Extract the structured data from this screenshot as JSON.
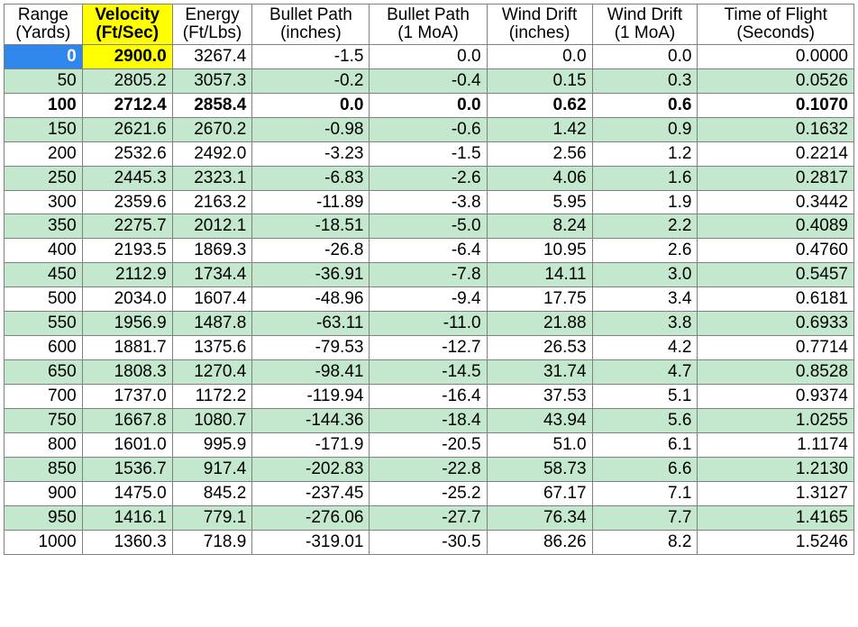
{
  "table": {
    "background_color": "#ffffff",
    "alt_row_color": "#c3e8cd",
    "border_color": "#808080",
    "header_bg": "#ffffff",
    "highlight_header_bg": "#ffff00",
    "first_range_bg": "#2f86eb",
    "first_range_text": "#ffffff",
    "font_family": "Arial",
    "font_size_pt": 14,
    "columns": [
      {
        "key": "range",
        "line1": "Range",
        "line2": "(Yards)",
        "align": "right",
        "highlight": false
      },
      {
        "key": "velocity",
        "line1": "Velocity",
        "line2": "(Ft/Sec)",
        "align": "right",
        "highlight": true
      },
      {
        "key": "energy",
        "line1": "Energy",
        "line2": "(Ft/Lbs)",
        "align": "right",
        "highlight": false
      },
      {
        "key": "path_in",
        "line1": "Bullet Path",
        "line2": "(inches)",
        "align": "right",
        "highlight": false
      },
      {
        "key": "path_moa",
        "line1": "Bullet Path",
        "line2": "(1 MoA)",
        "align": "right",
        "highlight": false
      },
      {
        "key": "drift_in",
        "line1": "Wind Drift",
        "line2": "(inches)",
        "align": "right",
        "highlight": false
      },
      {
        "key": "drift_moa",
        "line1": "Wind Drift",
        "line2": "(1 MoA)",
        "align": "right",
        "highlight": false
      },
      {
        "key": "tof",
        "line1": "Time of Flight",
        "line2": "(Seconds)",
        "align": "right",
        "highlight": false
      }
    ],
    "rows": [
      {
        "range": "0",
        "velocity": "2900.0",
        "energy": "3267.4",
        "path_in": "-1.5",
        "path_moa": "0.0",
        "drift_in": "0.0",
        "drift_moa": "0.0",
        "tof": "0.0000",
        "bold": false,
        "first": true
      },
      {
        "range": "50",
        "velocity": "2805.2",
        "energy": "3057.3",
        "path_in": "-0.2",
        "path_moa": "-0.4",
        "drift_in": "0.15",
        "drift_moa": "0.3",
        "tof": "0.0526",
        "bold": false,
        "first": false
      },
      {
        "range": "100",
        "velocity": "2712.4",
        "energy": "2858.4",
        "path_in": "0.0",
        "path_moa": "0.0",
        "drift_in": "0.62",
        "drift_moa": "0.6",
        "tof": "0.1070",
        "bold": true,
        "first": false
      },
      {
        "range": "150",
        "velocity": "2621.6",
        "energy": "2670.2",
        "path_in": "-0.98",
        "path_moa": "-0.6",
        "drift_in": "1.42",
        "drift_moa": "0.9",
        "tof": "0.1632",
        "bold": false,
        "first": false
      },
      {
        "range": "200",
        "velocity": "2532.6",
        "energy": "2492.0",
        "path_in": "-3.23",
        "path_moa": "-1.5",
        "drift_in": "2.56",
        "drift_moa": "1.2",
        "tof": "0.2214",
        "bold": false,
        "first": false
      },
      {
        "range": "250",
        "velocity": "2445.3",
        "energy": "2323.1",
        "path_in": "-6.83",
        "path_moa": "-2.6",
        "drift_in": "4.06",
        "drift_moa": "1.6",
        "tof": "0.2817",
        "bold": false,
        "first": false
      },
      {
        "range": "300",
        "velocity": "2359.6",
        "energy": "2163.2",
        "path_in": "-11.89",
        "path_moa": "-3.8",
        "drift_in": "5.95",
        "drift_moa": "1.9",
        "tof": "0.3442",
        "bold": false,
        "first": false
      },
      {
        "range": "350",
        "velocity": "2275.7",
        "energy": "2012.1",
        "path_in": "-18.51",
        "path_moa": "-5.0",
        "drift_in": "8.24",
        "drift_moa": "2.2",
        "tof": "0.4089",
        "bold": false,
        "first": false
      },
      {
        "range": "400",
        "velocity": "2193.5",
        "energy": "1869.3",
        "path_in": "-26.8",
        "path_moa": "-6.4",
        "drift_in": "10.95",
        "drift_moa": "2.6",
        "tof": "0.4760",
        "bold": false,
        "first": false
      },
      {
        "range": "450",
        "velocity": "2112.9",
        "energy": "1734.4",
        "path_in": "-36.91",
        "path_moa": "-7.8",
        "drift_in": "14.11",
        "drift_moa": "3.0",
        "tof": "0.5457",
        "bold": false,
        "first": false
      },
      {
        "range": "500",
        "velocity": "2034.0",
        "energy": "1607.4",
        "path_in": "-48.96",
        "path_moa": "-9.4",
        "drift_in": "17.75",
        "drift_moa": "3.4",
        "tof": "0.6181",
        "bold": false,
        "first": false
      },
      {
        "range": "550",
        "velocity": "1956.9",
        "energy": "1487.8",
        "path_in": "-63.11",
        "path_moa": "-11.0",
        "drift_in": "21.88",
        "drift_moa": "3.8",
        "tof": "0.6933",
        "bold": false,
        "first": false
      },
      {
        "range": "600",
        "velocity": "1881.7",
        "energy": "1375.6",
        "path_in": "-79.53",
        "path_moa": "-12.7",
        "drift_in": "26.53",
        "drift_moa": "4.2",
        "tof": "0.7714",
        "bold": false,
        "first": false
      },
      {
        "range": "650",
        "velocity": "1808.3",
        "energy": "1270.4",
        "path_in": "-98.41",
        "path_moa": "-14.5",
        "drift_in": "31.74",
        "drift_moa": "4.7",
        "tof": "0.8528",
        "bold": false,
        "first": false
      },
      {
        "range": "700",
        "velocity": "1737.0",
        "energy": "1172.2",
        "path_in": "-119.94",
        "path_moa": "-16.4",
        "drift_in": "37.53",
        "drift_moa": "5.1",
        "tof": "0.9374",
        "bold": false,
        "first": false
      },
      {
        "range": "750",
        "velocity": "1667.8",
        "energy": "1080.7",
        "path_in": "-144.36",
        "path_moa": "-18.4",
        "drift_in": "43.94",
        "drift_moa": "5.6",
        "tof": "1.0255",
        "bold": false,
        "first": false
      },
      {
        "range": "800",
        "velocity": "1601.0",
        "energy": "995.9",
        "path_in": "-171.9",
        "path_moa": "-20.5",
        "drift_in": "51.0",
        "drift_moa": "6.1",
        "tof": "1.1174",
        "bold": false,
        "first": false
      },
      {
        "range": "850",
        "velocity": "1536.7",
        "energy": "917.4",
        "path_in": "-202.83",
        "path_moa": "-22.8",
        "drift_in": "58.73",
        "drift_moa": "6.6",
        "tof": "1.2130",
        "bold": false,
        "first": false
      },
      {
        "range": "900",
        "velocity": "1475.0",
        "energy": "845.2",
        "path_in": "-237.45",
        "path_moa": "-25.2",
        "drift_in": "67.17",
        "drift_moa": "7.1",
        "tof": "1.3127",
        "bold": false,
        "first": false
      },
      {
        "range": "950",
        "velocity": "1416.1",
        "energy": "779.1",
        "path_in": "-276.06",
        "path_moa": "-27.7",
        "drift_in": "76.34",
        "drift_moa": "7.7",
        "tof": "1.4165",
        "bold": false,
        "first": false
      },
      {
        "range": "1000",
        "velocity": "1360.3",
        "energy": "718.9",
        "path_in": "-319.01",
        "path_moa": "-30.5",
        "drift_in": "86.26",
        "drift_moa": "8.2",
        "tof": "1.5246",
        "bold": false,
        "first": false
      }
    ]
  }
}
